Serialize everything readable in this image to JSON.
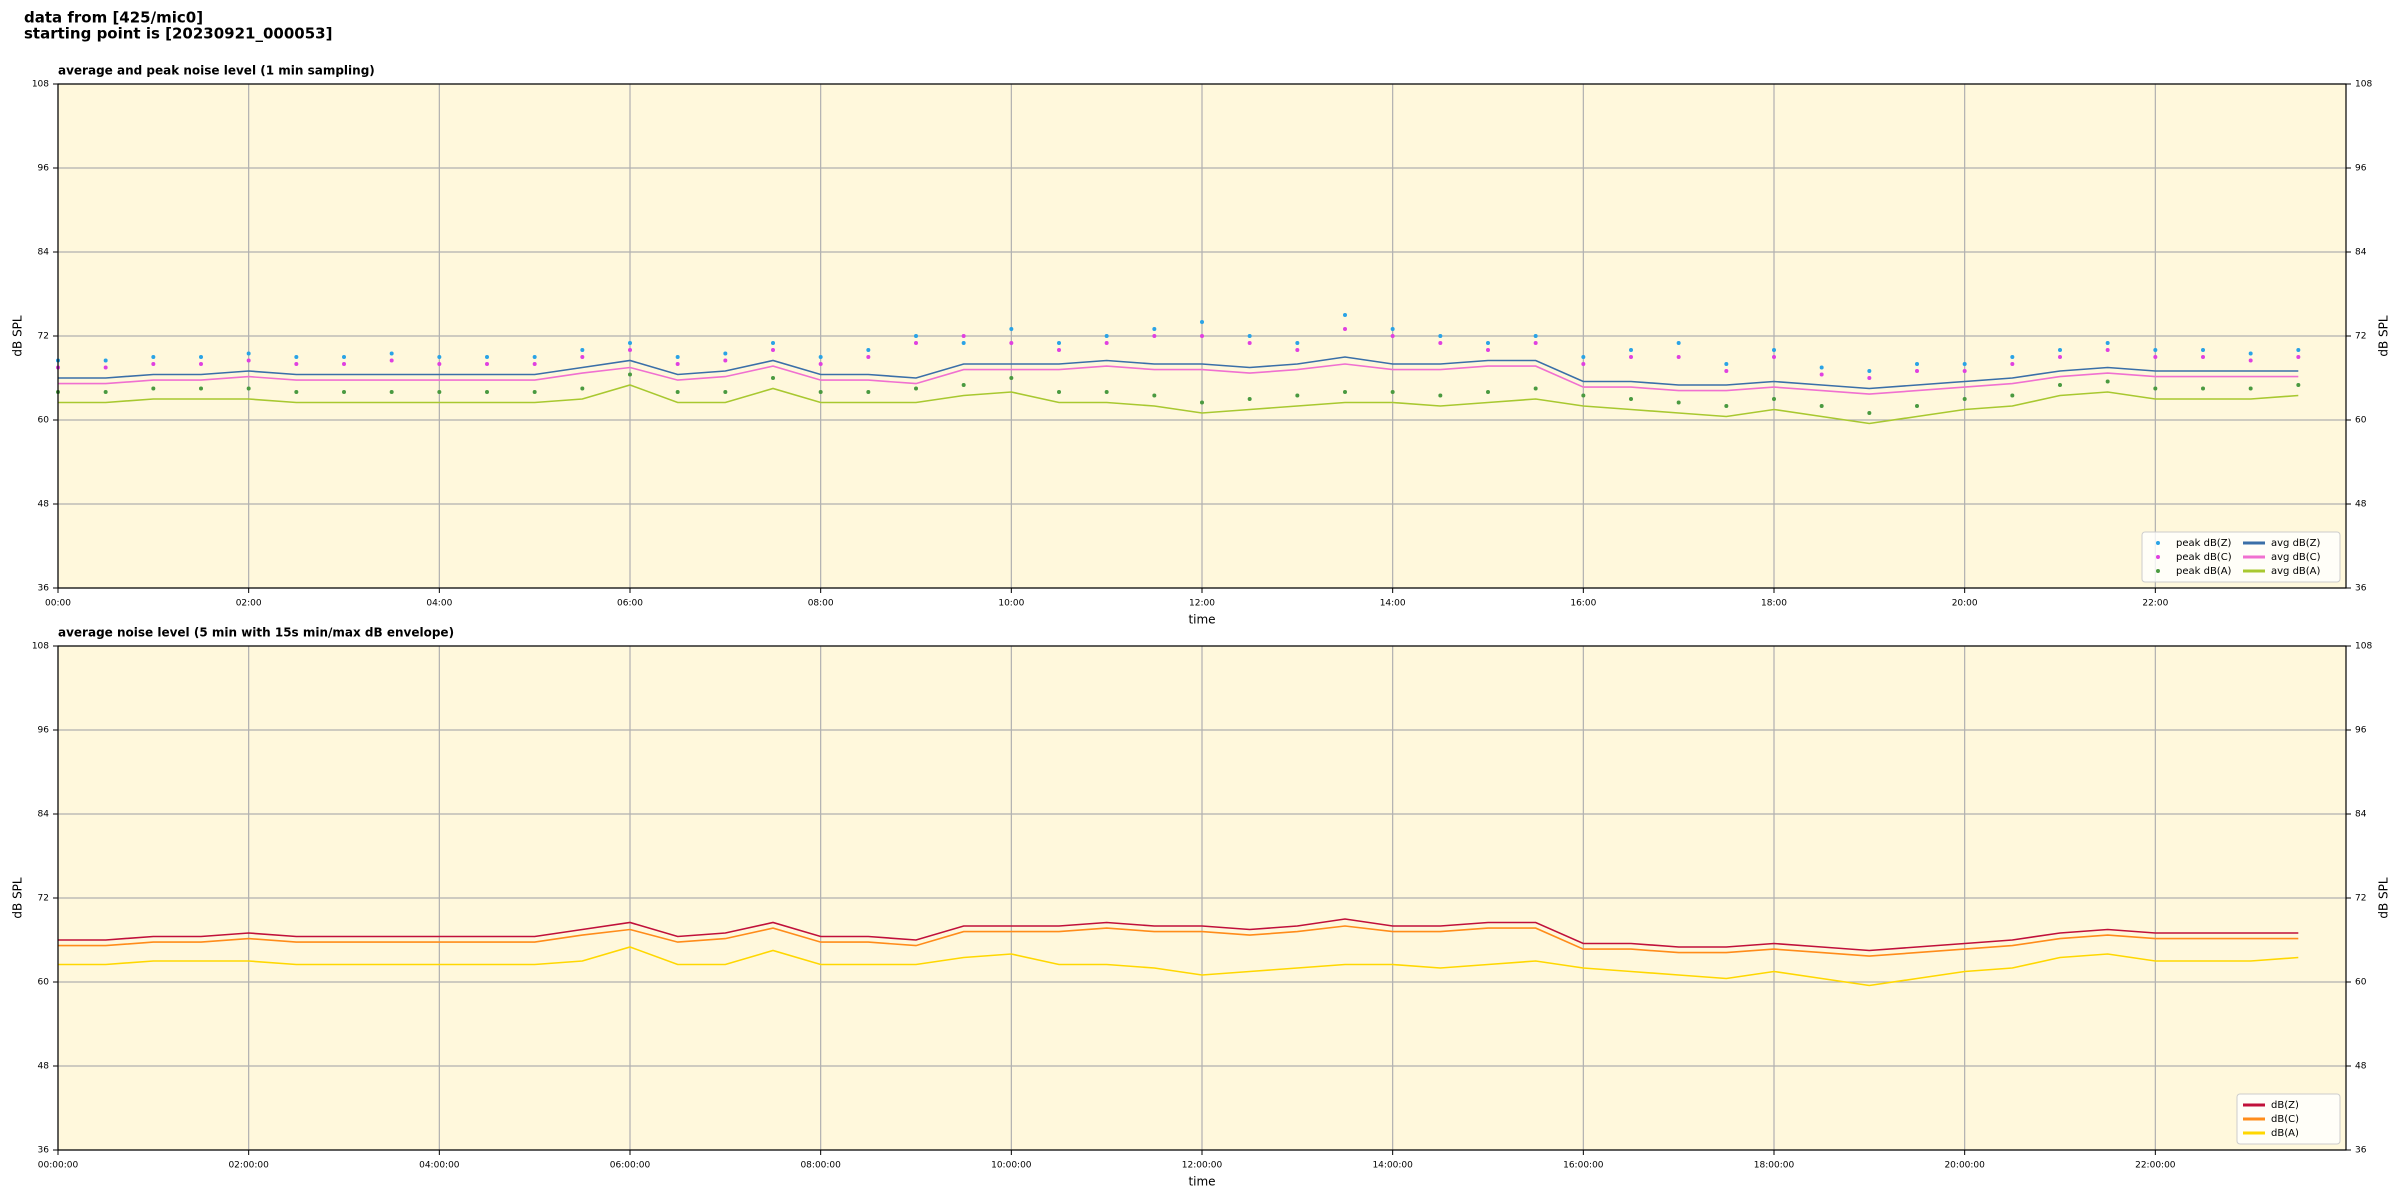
{
  "header": [
    "data from [425/mic0]",
    "starting point is [20230921_000053]"
  ],
  "chart_data": [
    {
      "type": "line",
      "title": "average and peak noise level (1 min sampling)",
      "xlabel": "time",
      "ylabel": "dB SPL",
      "x": [
        "00:00",
        "00:30",
        "01:00",
        "01:30",
        "02:00",
        "02:30",
        "03:00",
        "03:30",
        "04:00",
        "04:30",
        "05:00",
        "05:30",
        "06:00",
        "06:30",
        "07:00",
        "07:30",
        "08:00",
        "08:30",
        "09:00",
        "09:30",
        "10:00",
        "10:30",
        "11:00",
        "11:30",
        "12:00",
        "12:30",
        "13:00",
        "13:30",
        "14:00",
        "14:30",
        "15:00",
        "15:30",
        "16:00",
        "16:30",
        "17:00",
        "17:30",
        "18:00",
        "18:30",
        "19:00",
        "19:30",
        "20:00",
        "20:30",
        "21:00",
        "21:30",
        "22:00",
        "22:30",
        "23:00",
        "23:30"
      ],
      "xlim": [
        "00:00",
        "24:00"
      ],
      "xticks": [
        "00:00",
        "02:00",
        "04:00",
        "06:00",
        "08:00",
        "10:00",
        "12:00",
        "14:00",
        "16:00",
        "18:00",
        "20:00",
        "22:00"
      ],
      "ylim": [
        36,
        108
      ],
      "yticks": [
        36,
        48,
        60,
        72,
        84,
        96,
        108
      ],
      "grid": true,
      "legend": "lower right",
      "background": "#fff8dc",
      "series": [
        {
          "name": "peak dB(Z)",
          "color": "#2aa3e6",
          "marker": "dot",
          "values": [
            68.5,
            68.5,
            69,
            69,
            69.5,
            69,
            69,
            69.5,
            69,
            69,
            69,
            70,
            71,
            69,
            69.5,
            71,
            69,
            70,
            72,
            71,
            73,
            71,
            72,
            73,
            74,
            72,
            71,
            75,
            73,
            72,
            71,
            72,
            69,
            70,
            71,
            68,
            70,
            67.5,
            67,
            68,
            68,
            69,
            70,
            71,
            70,
            70,
            69.5,
            70
          ]
        },
        {
          "name": "peak dB(C)",
          "color": "#e040e0",
          "marker": "dot",
          "values": [
            67.5,
            67.5,
            68,
            68,
            68.5,
            68,
            68,
            68.5,
            68,
            68,
            68,
            69,
            70,
            68,
            68.5,
            70,
            68,
            69,
            71,
            72,
            71,
            70,
            71,
            72,
            72,
            71,
            70,
            73,
            72,
            71,
            70,
            71,
            68,
            69,
            69,
            67,
            69,
            66.5,
            66,
            67,
            67,
            68,
            69,
            70,
            69,
            69,
            68.5,
            69
          ]
        },
        {
          "name": "peak dB(A)",
          "color": "#4a9a40",
          "marker": "dot",
          "values": [
            64,
            64,
            64.5,
            64.5,
            64.5,
            64,
            64,
            64,
            64,
            64,
            64,
            64.5,
            66.5,
            64,
            64,
            66,
            64,
            64,
            64.5,
            65,
            66,
            64,
            64,
            63.5,
            62.5,
            63,
            63.5,
            64,
            64,
            63.5,
            64,
            64.5,
            63.5,
            63,
            62.5,
            62,
            63,
            62,
            61,
            62,
            63,
            63.5,
            65,
            65.5,
            64.5,
            64.5,
            64.5,
            65
          ]
        },
        {
          "name": "avg dB(Z)",
          "color": "#3a6fa8",
          "values": [
            66,
            66,
            66.5,
            66.5,
            67,
            66.5,
            66.5,
            66.5,
            66.5,
            66.5,
            66.5,
            67.5,
            68.5,
            66.5,
            67,
            68.5,
            66.5,
            66.5,
            66,
            68,
            68,
            68,
            68.5,
            68,
            68,
            67.5,
            68,
            69,
            68,
            68,
            68.5,
            68.5,
            65.5,
            65.5,
            65,
            65,
            65.5,
            65,
            64.5,
            65,
            65.5,
            66,
            67,
            67.5,
            67,
            67,
            67,
            67
          ]
        },
        {
          "name": "avg dB(C)",
          "color": "#f070d0",
          "values": [
            65.2,
            65.2,
            65.7,
            65.7,
            66.2,
            65.7,
            65.7,
            65.7,
            65.7,
            65.7,
            65.7,
            66.7,
            67.5,
            65.7,
            66.2,
            67.7,
            65.7,
            65.7,
            65.2,
            67.2,
            67.2,
            67.2,
            67.7,
            67.2,
            67.2,
            66.7,
            67.2,
            68,
            67.2,
            67.2,
            67.7,
            67.7,
            64.7,
            64.7,
            64.2,
            64.2,
            64.7,
            64.2,
            63.7,
            64.2,
            64.7,
            65.2,
            66.2,
            66.7,
            66.2,
            66.2,
            66.2,
            66.2
          ]
        },
        {
          "name": "avg dB(A)",
          "color": "#a8c830",
          "values": [
            62.5,
            62.5,
            63,
            63,
            63,
            62.5,
            62.5,
            62.5,
            62.5,
            62.5,
            62.5,
            63,
            65,
            62.5,
            62.5,
            64.5,
            62.5,
            62.5,
            62.5,
            63.5,
            64,
            62.5,
            62.5,
            62,
            61,
            61.5,
            62,
            62.5,
            62.5,
            62,
            62.5,
            63,
            62,
            61.5,
            61,
            60.5,
            61.5,
            60.5,
            59.5,
            60.5,
            61.5,
            62,
            63.5,
            64,
            63,
            63,
            63,
            63.5
          ]
        }
      ]
    },
    {
      "type": "line",
      "title": "average noise level (5 min with 15s min/max dB envelope)",
      "xlabel": "time",
      "ylabel": "dB SPL",
      "x": [
        "00:00:00",
        "00:30:00",
        "01:00:00",
        "01:30:00",
        "02:00:00",
        "02:30:00",
        "03:00:00",
        "03:30:00",
        "04:00:00",
        "04:30:00",
        "05:00:00",
        "05:30:00",
        "06:00:00",
        "06:30:00",
        "07:00:00",
        "07:30:00",
        "08:00:00",
        "08:30:00",
        "09:00:00",
        "09:30:00",
        "10:00:00",
        "10:30:00",
        "11:00:00",
        "11:30:00",
        "12:00:00",
        "12:30:00",
        "13:00:00",
        "13:30:00",
        "14:00:00",
        "14:30:00",
        "15:00:00",
        "15:30:00",
        "16:00:00",
        "16:30:00",
        "17:00:00",
        "17:30:00",
        "18:00:00",
        "18:30:00",
        "19:00:00",
        "19:30:00",
        "20:00:00",
        "20:30:00",
        "21:00:00",
        "21:30:00",
        "22:00:00",
        "22:30:00",
        "23:00:00",
        "23:30:00"
      ],
      "xlim": [
        "00:00:00",
        "24:00:00"
      ],
      "xticks": [
        "00:00:00",
        "02:00:00",
        "04:00:00",
        "06:00:00",
        "08:00:00",
        "10:00:00",
        "12:00:00",
        "14:00:00",
        "16:00:00",
        "18:00:00",
        "20:00:00",
        "22:00:00"
      ],
      "ylim": [
        36,
        108
      ],
      "yticks": [
        36,
        48,
        60,
        72,
        84,
        96,
        108
      ],
      "grid": true,
      "legend": "lower right",
      "background": "#fff8dc",
      "series": [
        {
          "name": "dB(Z)",
          "color": "#c0103a",
          "values": [
            66,
            66,
            66.5,
            66.5,
            67,
            66.5,
            66.5,
            66.5,
            66.5,
            66.5,
            66.5,
            67.5,
            68.5,
            66.5,
            67,
            68.5,
            66.5,
            66.5,
            66,
            68,
            68,
            68,
            68.5,
            68,
            68,
            67.5,
            68,
            69,
            68,
            68,
            68.5,
            68.5,
            65.5,
            65.5,
            65,
            65,
            65.5,
            65,
            64.5,
            65,
            65.5,
            66,
            67,
            67.5,
            67,
            67,
            67,
            67
          ]
        },
        {
          "name": "dB(C)",
          "color": "#ff8c1a",
          "values": [
            65.2,
            65.2,
            65.7,
            65.7,
            66.2,
            65.7,
            65.7,
            65.7,
            65.7,
            65.7,
            65.7,
            66.7,
            67.5,
            65.7,
            66.2,
            67.7,
            65.7,
            65.7,
            65.2,
            67.2,
            67.2,
            67.2,
            67.7,
            67.2,
            67.2,
            66.7,
            67.2,
            68,
            67.2,
            67.2,
            67.7,
            67.7,
            64.7,
            64.7,
            64.2,
            64.2,
            64.7,
            64.2,
            63.7,
            64.2,
            64.7,
            65.2,
            66.2,
            66.7,
            66.2,
            66.2,
            66.2,
            66.2
          ]
        },
        {
          "name": "dB(A)",
          "color": "#ffd700",
          "values": [
            62.5,
            62.5,
            63,
            63,
            63,
            62.5,
            62.5,
            62.5,
            62.5,
            62.5,
            62.5,
            63,
            65,
            62.5,
            62.5,
            64.5,
            62.5,
            62.5,
            62.5,
            63.5,
            64,
            62.5,
            62.5,
            62,
            61,
            61.5,
            62,
            62.5,
            62.5,
            62,
            62.5,
            63,
            62,
            61.5,
            61,
            60.5,
            61.5,
            60.5,
            59.5,
            60.5,
            61.5,
            62,
            63.5,
            64,
            63,
            63,
            63,
            63.5
          ]
        }
      ]
    }
  ]
}
